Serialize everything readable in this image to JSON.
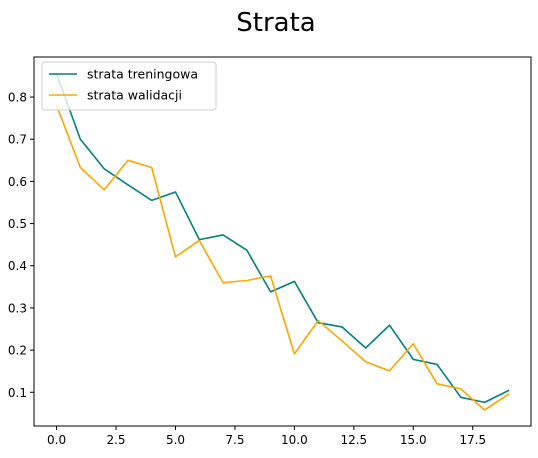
{
  "chart_data": {
    "type": "line",
    "title": "Strata",
    "xlabel": "",
    "ylabel": "",
    "xlim": [
      -0.95,
      19.95
    ],
    "ylim": [
      0.02,
      0.895
    ],
    "xticks": [
      0,
      2.5,
      5,
      7.5,
      10,
      12.5,
      15,
      17.5
    ],
    "xtick_labels": [
      "0.0",
      "2.5",
      "5.0",
      "7.5",
      "10.0",
      "12.5",
      "15.0",
      "17.5"
    ],
    "yticks": [
      0.1,
      0.2,
      0.3,
      0.4,
      0.5,
      0.6,
      0.7,
      0.8
    ],
    "ytick_labels": [
      "0.1",
      "0.2",
      "0.3",
      "0.4",
      "0.5",
      "0.6",
      "0.7",
      "0.8"
    ],
    "grid": false,
    "legend_position": "top-left",
    "x": [
      0,
      1,
      2,
      3,
      4,
      5,
      6,
      7,
      8,
      9,
      10,
      11,
      12,
      13,
      14,
      15,
      16,
      17,
      18,
      19
    ],
    "series": [
      {
        "name": "strata treningowa",
        "color": "#008080",
        "values": [
          0.855,
          0.7,
          0.63,
          0.592,
          0.555,
          0.575,
          0.462,
          0.473,
          0.437,
          0.338,
          0.363,
          0.265,
          0.255,
          0.205,
          0.259,
          0.178,
          0.166,
          0.088,
          0.076,
          0.104
        ]
      },
      {
        "name": "strata walidacji",
        "color": "#FFA500",
        "values": [
          0.78,
          0.633,
          0.58,
          0.65,
          0.633,
          0.421,
          0.46,
          0.36,
          0.365,
          0.376,
          0.191,
          0.27,
          0.222,
          0.172,
          0.151,
          0.215,
          0.12,
          0.108,
          0.058,
          0.095
        ]
      }
    ]
  }
}
